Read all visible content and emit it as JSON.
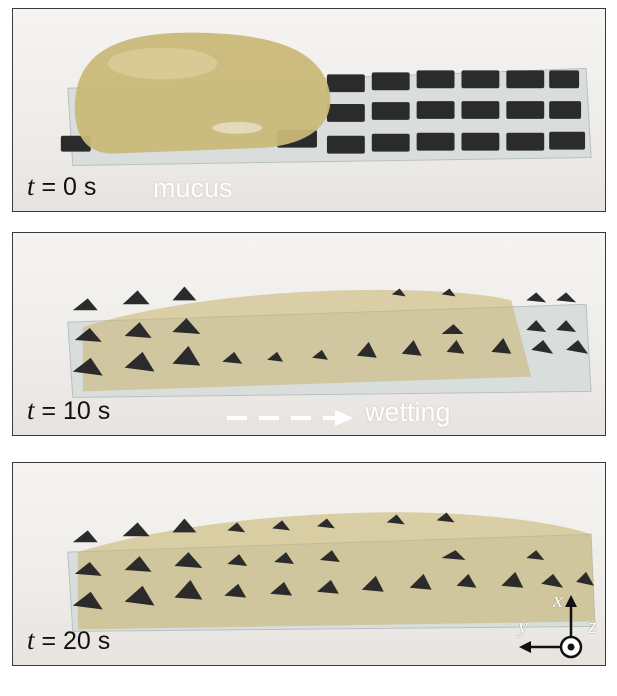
{
  "panels": [
    {
      "time_var": "t",
      "time_value": "= 0 s",
      "annotation": "mucus"
    },
    {
      "time_var": "t",
      "time_value": "= 10 s",
      "annotation": "wetting"
    },
    {
      "time_var": "t",
      "time_value": "= 20 s",
      "annotation": ""
    }
  ],
  "axes": {
    "x": "x",
    "y": "y",
    "z": "z"
  },
  "colors": {
    "mucus": "#c9b878",
    "tile": "#2b2b2b",
    "glass": "#cfd6d6",
    "frame": "#3a3a3a"
  }
}
